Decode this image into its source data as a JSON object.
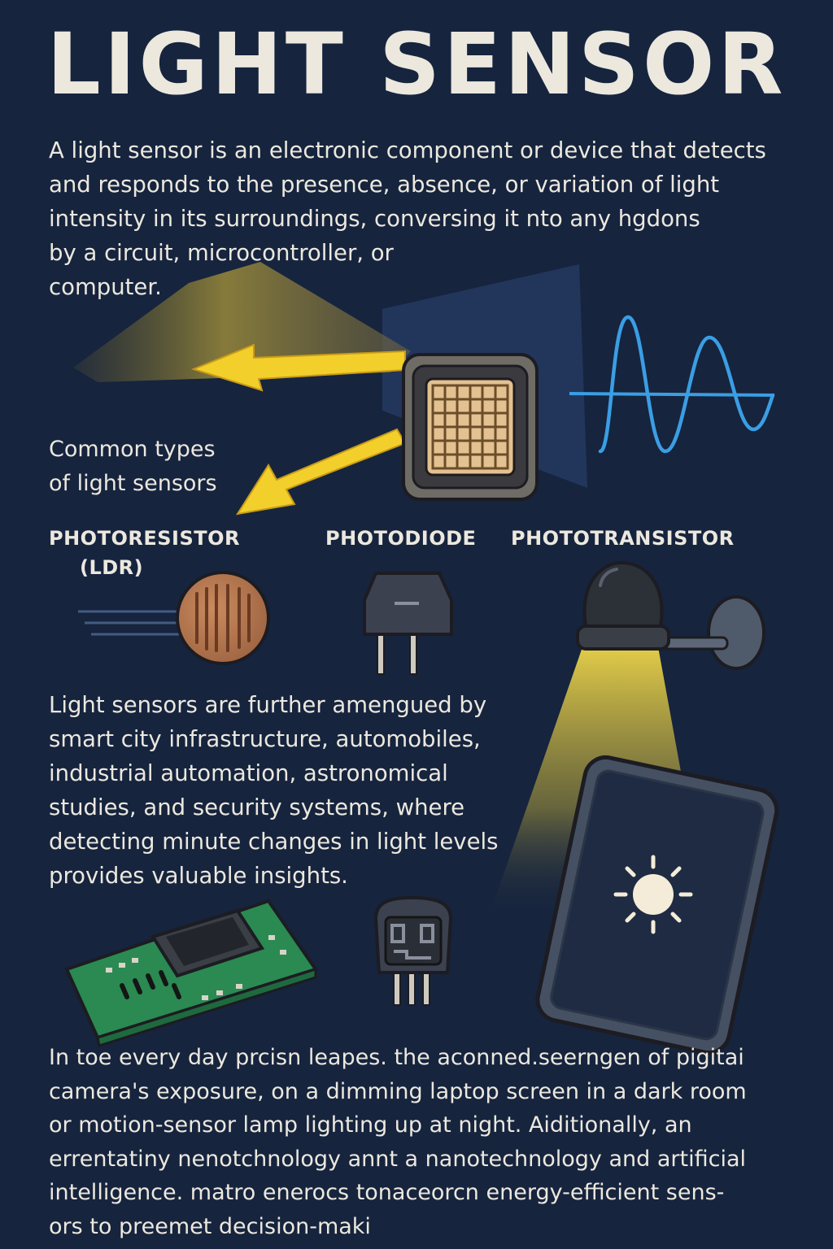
{
  "title": "LIGHT SENSOR",
  "intro": "A light sensor is an electronic component or device that detects\nand responds to the presence, absence, or variation of light\nintensity in its surroundings, conversing it nto  any hgdons\nby a circuit, microcontroller, or\ncomputer.",
  "types_heading": "Common types\nof light sensors",
  "sensor_types": [
    {
      "label": "PHOTORESISTOR",
      "sublabel": "(LDR)"
    },
    {
      "label": "PHOTODIODE"
    },
    {
      "label": "PHOTOTRANSISTOR"
    }
  ],
  "applications": "Light sensors are further amengued by\nsmart city infrastructure, automobiles,\nindustrial automation, astronomical\nstudies, and security systems, where\ndetecting minute changes in light levels\nprovides valuable insights.",
  "daily_use": "In toe every day prcisn leapes. the aconned.seerngen of pigitai\ncamera's exposure, on a dimming laptop screen in a dark room\nor motion-sensor lamp lighting up at night. Aiditionally, an\nerrentatiny nenotchnology annt a nanotechnology and artificial\nintelligence. matro enerocs tonaceorcn energy-efficient sens-\nors to preemet decision-maki",
  "colors": {
    "background": "#16243e",
    "text": "#ece8de",
    "light_yellow": "#f2cf2a",
    "signal_blue": "#3a9ee4",
    "pcb_green": "#2a8a52"
  },
  "icons": [
    "light-sensor-chip-icon",
    "light-arrow-icon",
    "waveform-signal-icon",
    "photoresistor-icon",
    "photodiode-icon",
    "phototransistor-lamp-icon",
    "circuit-board-icon",
    "sensor-module-icon",
    "tablet-brightness-icon",
    "sun-icon"
  ]
}
